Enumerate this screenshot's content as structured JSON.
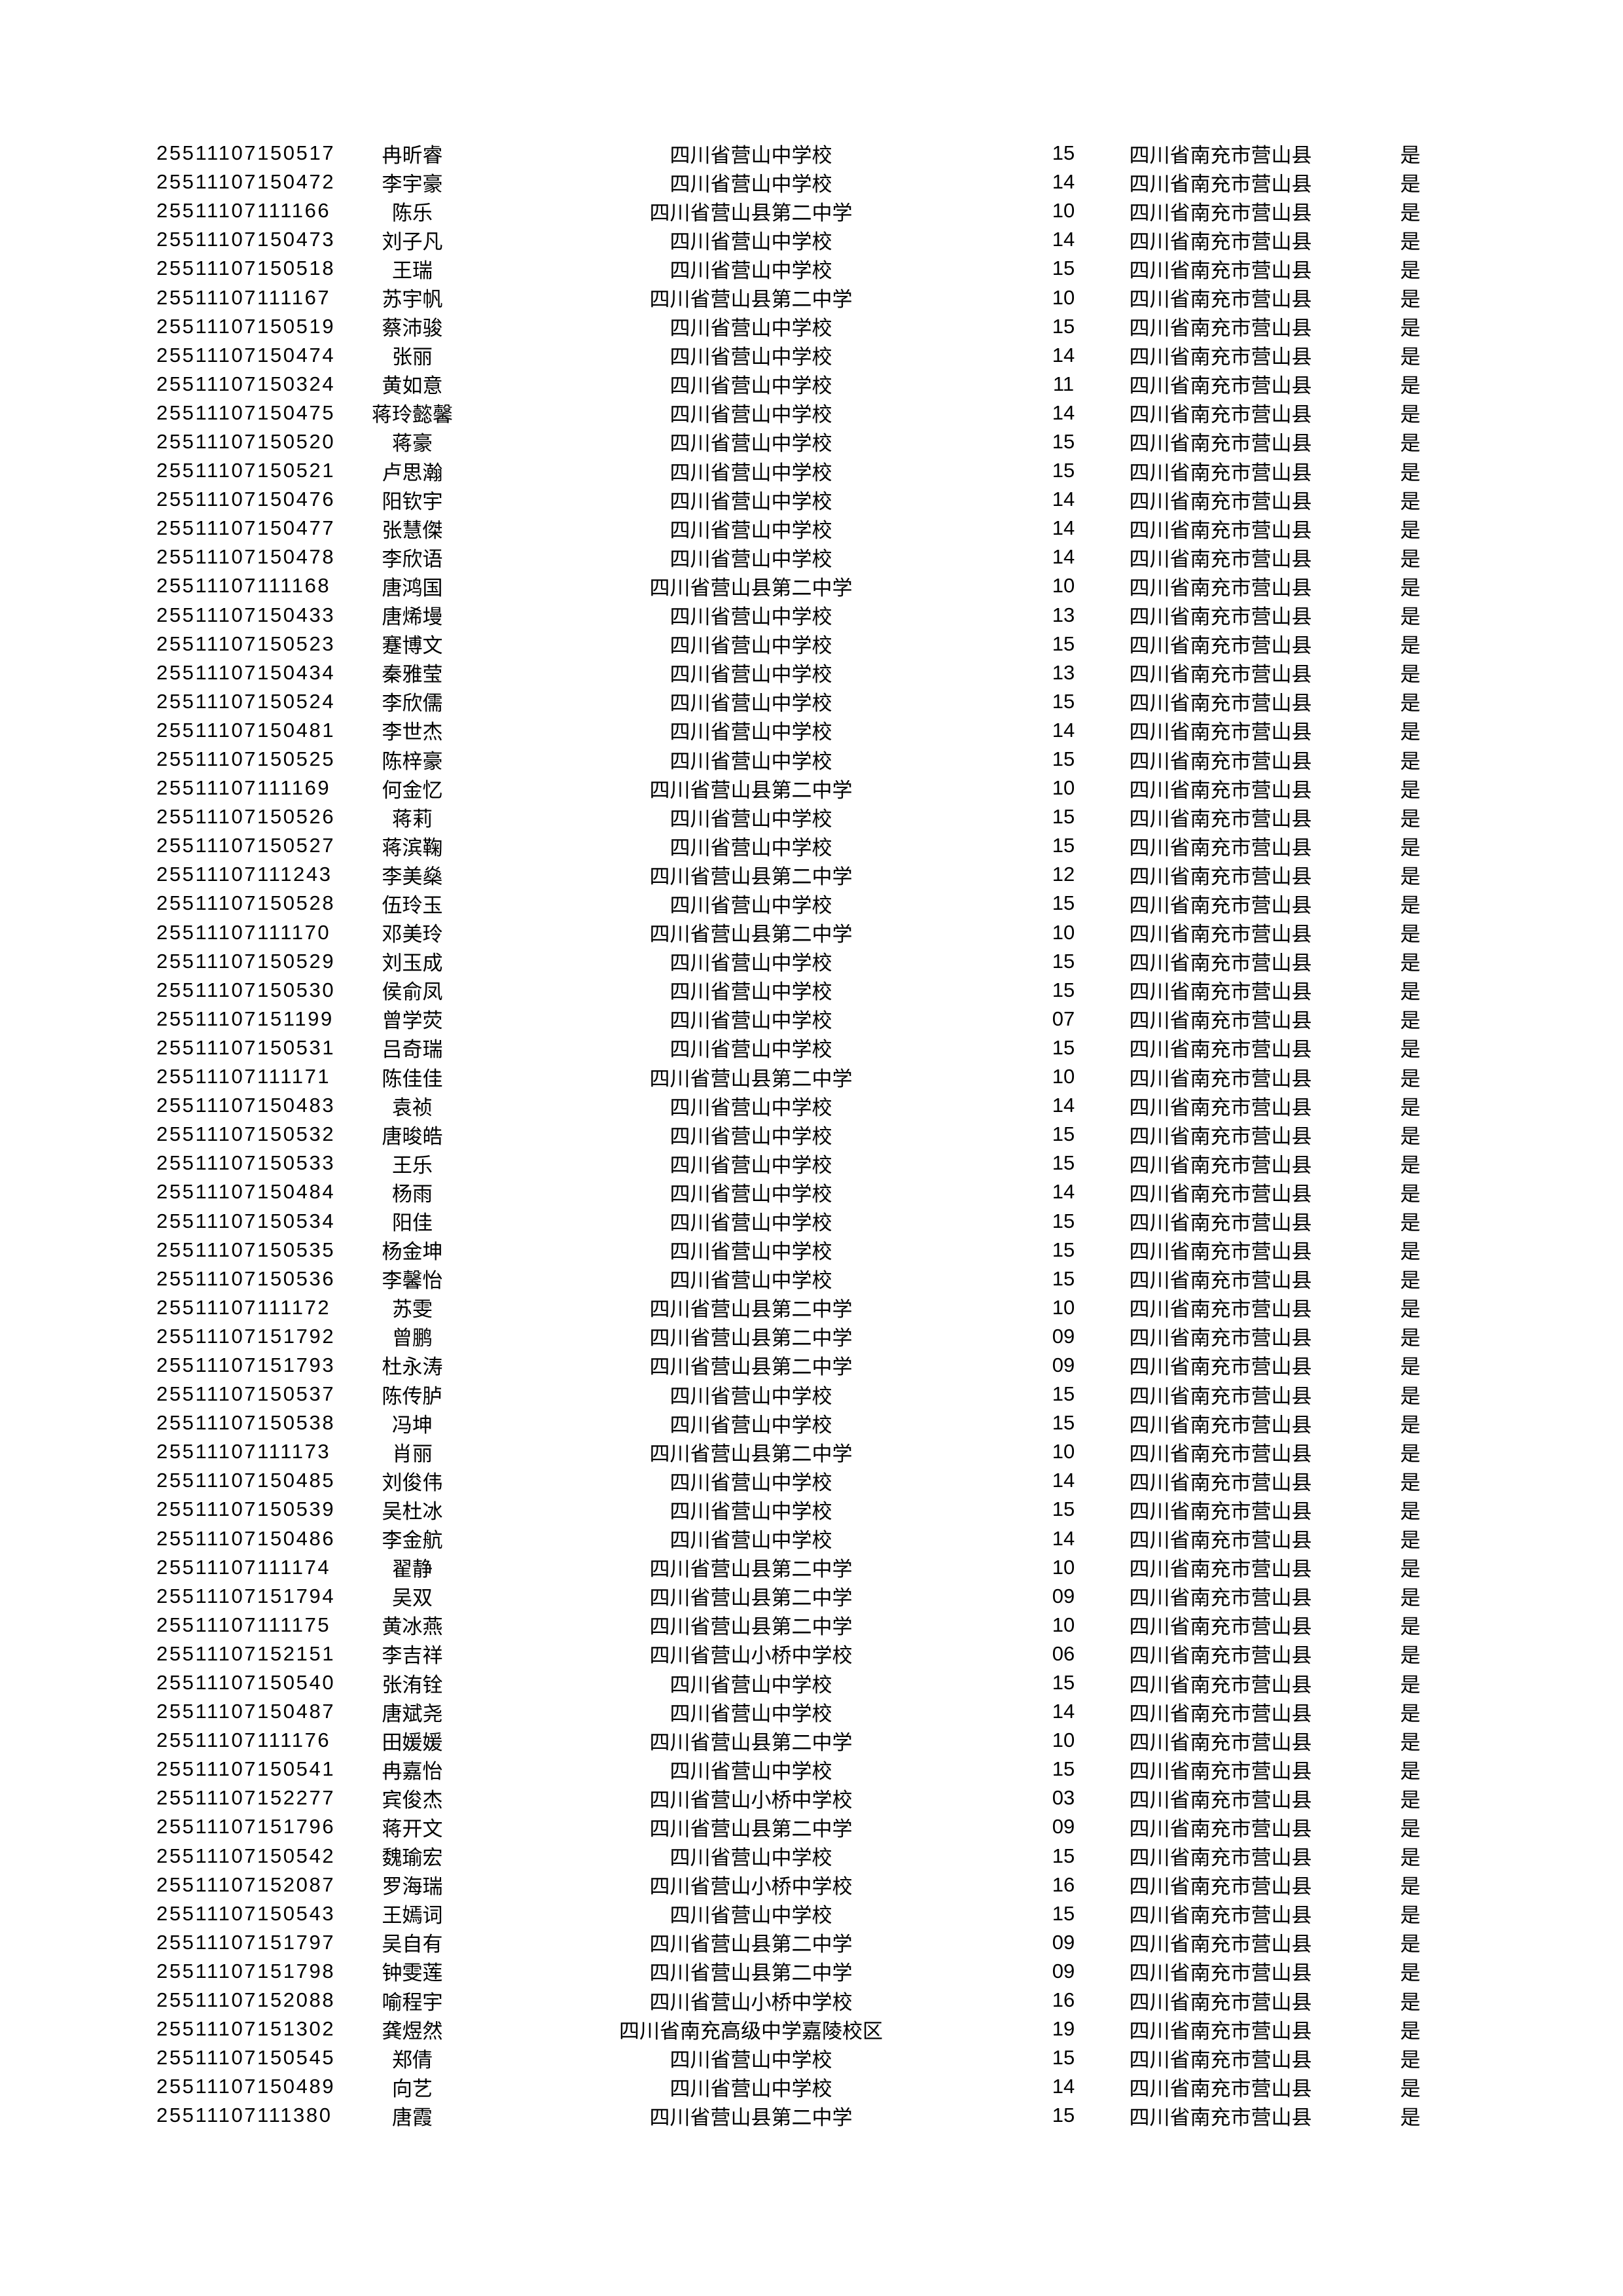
{
  "page": {
    "background": "#ffffff",
    "text_color": "#000000",
    "region_label": "四川省南充市营山县",
    "confirm_label": "是"
  },
  "table": {
    "rows": [
      {
        "id": "25511107150517",
        "name": "冉昕睿",
        "school": "四川省营山中学校",
        "score": "15",
        "region": "四川省南充市营山县",
        "flag": "是"
      },
      {
        "id": "25511107150472",
        "name": "李宇豪",
        "school": "四川省营山中学校",
        "score": "14",
        "region": "四川省南充市营山县",
        "flag": "是"
      },
      {
        "id": "25511107111166",
        "name": "陈乐",
        "school": "四川省营山县第二中学",
        "score": "10",
        "region": "四川省南充市营山县",
        "flag": "是"
      },
      {
        "id": "25511107150473",
        "name": "刘子凡",
        "school": "四川省营山中学校",
        "score": "14",
        "region": "四川省南充市营山县",
        "flag": "是"
      },
      {
        "id": "25511107150518",
        "name": "王瑞",
        "school": "四川省营山中学校",
        "score": "15",
        "region": "四川省南充市营山县",
        "flag": "是"
      },
      {
        "id": "25511107111167",
        "name": "苏宇帆",
        "school": "四川省营山县第二中学",
        "score": "10",
        "region": "四川省南充市营山县",
        "flag": "是"
      },
      {
        "id": "25511107150519",
        "name": "蔡沛骏",
        "school": "四川省营山中学校",
        "score": "15",
        "region": "四川省南充市营山县",
        "flag": "是"
      },
      {
        "id": "25511107150474",
        "name": "张丽",
        "school": "四川省营山中学校",
        "score": "14",
        "region": "四川省南充市营山县",
        "flag": "是"
      },
      {
        "id": "25511107150324",
        "name": "黄如意",
        "school": "四川省营山中学校",
        "score": "11",
        "region": "四川省南充市营山县",
        "flag": "是"
      },
      {
        "id": "25511107150475",
        "name": "蒋玲懿馨",
        "school": "四川省营山中学校",
        "score": "14",
        "region": "四川省南充市营山县",
        "flag": "是"
      },
      {
        "id": "25511107150520",
        "name": "蒋豪",
        "school": "四川省营山中学校",
        "score": "15",
        "region": "四川省南充市营山县",
        "flag": "是"
      },
      {
        "id": "25511107150521",
        "name": "卢思瀚",
        "school": "四川省营山中学校",
        "score": "15",
        "region": "四川省南充市营山县",
        "flag": "是"
      },
      {
        "id": "25511107150476",
        "name": "阳钦宇",
        "school": "四川省营山中学校",
        "score": "14",
        "region": "四川省南充市营山县",
        "flag": "是"
      },
      {
        "id": "25511107150477",
        "name": "张慧傑",
        "school": "四川省营山中学校",
        "score": "14",
        "region": "四川省南充市营山县",
        "flag": "是"
      },
      {
        "id": "25511107150478",
        "name": "李欣语",
        "school": "四川省营山中学校",
        "score": "14",
        "region": "四川省南充市营山县",
        "flag": "是"
      },
      {
        "id": "25511107111168",
        "name": "唐鸿国",
        "school": "四川省营山县第二中学",
        "score": "10",
        "region": "四川省南充市营山县",
        "flag": "是"
      },
      {
        "id": "25511107150433",
        "name": "唐烯墁",
        "school": "四川省营山中学校",
        "score": "13",
        "region": "四川省南充市营山县",
        "flag": "是"
      },
      {
        "id": "25511107150523",
        "name": "蹇博文",
        "school": "四川省营山中学校",
        "score": "15",
        "region": "四川省南充市营山县",
        "flag": "是"
      },
      {
        "id": "25511107150434",
        "name": "秦雅莹",
        "school": "四川省营山中学校",
        "score": "13",
        "region": "四川省南充市营山县",
        "flag": "是"
      },
      {
        "id": "25511107150524",
        "name": "李欣儒",
        "school": "四川省营山中学校",
        "score": "15",
        "region": "四川省南充市营山县",
        "flag": "是"
      },
      {
        "id": "25511107150481",
        "name": "李世杰",
        "school": "四川省营山中学校",
        "score": "14",
        "region": "四川省南充市营山县",
        "flag": "是"
      },
      {
        "id": "25511107150525",
        "name": "陈梓豪",
        "school": "四川省营山中学校",
        "score": "15",
        "region": "四川省南充市营山县",
        "flag": "是"
      },
      {
        "id": "25511107111169",
        "name": "何金忆",
        "school": "四川省营山县第二中学",
        "score": "10",
        "region": "四川省南充市营山县",
        "flag": "是"
      },
      {
        "id": "25511107150526",
        "name": "蒋莉",
        "school": "四川省营山中学校",
        "score": "15",
        "region": "四川省南充市营山县",
        "flag": "是"
      },
      {
        "id": "25511107150527",
        "name": "蒋滨鞠",
        "school": "四川省营山中学校",
        "score": "15",
        "region": "四川省南充市营山县",
        "flag": "是"
      },
      {
        "id": "25511107111243",
        "name": "李美燊",
        "school": "四川省营山县第二中学",
        "score": "12",
        "region": "四川省南充市营山县",
        "flag": "是"
      },
      {
        "id": "25511107150528",
        "name": "伍玲玉",
        "school": "四川省营山中学校",
        "score": "15",
        "region": "四川省南充市营山县",
        "flag": "是"
      },
      {
        "id": "25511107111170",
        "name": "邓美玲",
        "school": "四川省营山县第二中学",
        "score": "10",
        "region": "四川省南充市营山县",
        "flag": "是"
      },
      {
        "id": "25511107150529",
        "name": "刘玉成",
        "school": "四川省营山中学校",
        "score": "15",
        "region": "四川省南充市营山县",
        "flag": "是"
      },
      {
        "id": "25511107150530",
        "name": "侯俞凤",
        "school": "四川省营山中学校",
        "score": "15",
        "region": "四川省南充市营山县",
        "flag": "是"
      },
      {
        "id": "25511107151199",
        "name": "曾学荧",
        "school": "四川省营山中学校",
        "score": "07",
        "region": "四川省南充市营山县",
        "flag": "是"
      },
      {
        "id": "25511107150531",
        "name": "吕奇瑞",
        "school": "四川省营山中学校",
        "score": "15",
        "region": "四川省南充市营山县",
        "flag": "是"
      },
      {
        "id": "25511107111171",
        "name": "陈佳佳",
        "school": "四川省营山县第二中学",
        "score": "10",
        "region": "四川省南充市营山县",
        "flag": "是"
      },
      {
        "id": "25511107150483",
        "name": "袁祯",
        "school": "四川省营山中学校",
        "score": "14",
        "region": "四川省南充市营山县",
        "flag": "是"
      },
      {
        "id": "25511107150532",
        "name": "唐晙皓",
        "school": "四川省营山中学校",
        "score": "15",
        "region": "四川省南充市营山县",
        "flag": "是"
      },
      {
        "id": "25511107150533",
        "name": "王乐",
        "school": "四川省营山中学校",
        "score": "15",
        "region": "四川省南充市营山县",
        "flag": "是"
      },
      {
        "id": "25511107150484",
        "name": "杨雨",
        "school": "四川省营山中学校",
        "score": "14",
        "region": "四川省南充市营山县",
        "flag": "是"
      },
      {
        "id": "25511107150534",
        "name": "阳佳",
        "school": "四川省营山中学校",
        "score": "15",
        "region": "四川省南充市营山县",
        "flag": "是"
      },
      {
        "id": "25511107150535",
        "name": "杨金坤",
        "school": "四川省营山中学校",
        "score": "15",
        "region": "四川省南充市营山县",
        "flag": "是"
      },
      {
        "id": "25511107150536",
        "name": "李馨怡",
        "school": "四川省营山中学校",
        "score": "15",
        "region": "四川省南充市营山县",
        "flag": "是"
      },
      {
        "id": "25511107111172",
        "name": "苏雯",
        "school": "四川省营山县第二中学",
        "score": "10",
        "region": "四川省南充市营山县",
        "flag": "是"
      },
      {
        "id": "25511107151792",
        "name": "曾鹏",
        "school": "四川省营山县第二中学",
        "score": "09",
        "region": "四川省南充市营山县",
        "flag": "是"
      },
      {
        "id": "25511107151793",
        "name": "杜永涛",
        "school": "四川省营山县第二中学",
        "score": "09",
        "region": "四川省南充市营山县",
        "flag": "是"
      },
      {
        "id": "25511107150537",
        "name": "陈传胪",
        "school": "四川省营山中学校",
        "score": "15",
        "region": "四川省南充市营山县",
        "flag": "是"
      },
      {
        "id": "25511107150538",
        "name": "冯坤",
        "school": "四川省营山中学校",
        "score": "15",
        "region": "四川省南充市营山县",
        "flag": "是"
      },
      {
        "id": "25511107111173",
        "name": "肖丽",
        "school": "四川省营山县第二中学",
        "score": "10",
        "region": "四川省南充市营山县",
        "flag": "是"
      },
      {
        "id": "25511107150485",
        "name": "刘俊伟",
        "school": "四川省营山中学校",
        "score": "14",
        "region": "四川省南充市营山县",
        "flag": "是"
      },
      {
        "id": "25511107150539",
        "name": "吴杜冰",
        "school": "四川省营山中学校",
        "score": "15",
        "region": "四川省南充市营山县",
        "flag": "是"
      },
      {
        "id": "25511107150486",
        "name": "李金航",
        "school": "四川省营山中学校",
        "score": "14",
        "region": "四川省南充市营山县",
        "flag": "是"
      },
      {
        "id": "25511107111174",
        "name": "翟静",
        "school": "四川省营山县第二中学",
        "score": "10",
        "region": "四川省南充市营山县",
        "flag": "是"
      },
      {
        "id": "25511107151794",
        "name": "吴双",
        "school": "四川省营山县第二中学",
        "score": "09",
        "region": "四川省南充市营山县",
        "flag": "是"
      },
      {
        "id": "25511107111175",
        "name": "黄冰燕",
        "school": "四川省营山县第二中学",
        "score": "10",
        "region": "四川省南充市营山县",
        "flag": "是"
      },
      {
        "id": "25511107152151",
        "name": "李吉祥",
        "school": "四川省营山小桥中学校",
        "score": "06",
        "region": "四川省南充市营山县",
        "flag": "是"
      },
      {
        "id": "25511107150540",
        "name": "张洧铨",
        "school": "四川省营山中学校",
        "score": "15",
        "region": "四川省南充市营山县",
        "flag": "是"
      },
      {
        "id": "25511107150487",
        "name": "唐斌尧",
        "school": "四川省营山中学校",
        "score": "14",
        "region": "四川省南充市营山县",
        "flag": "是"
      },
      {
        "id": "25511107111176",
        "name": "田媛媛",
        "school": "四川省营山县第二中学",
        "score": "10",
        "region": "四川省南充市营山县",
        "flag": "是"
      },
      {
        "id": "25511107150541",
        "name": "冉嘉怡",
        "school": "四川省营山中学校",
        "score": "15",
        "region": "四川省南充市营山县",
        "flag": "是"
      },
      {
        "id": "25511107152277",
        "name": "宾俊杰",
        "school": "四川省营山小桥中学校",
        "score": "03",
        "region": "四川省南充市营山县",
        "flag": "是"
      },
      {
        "id": "25511107151796",
        "name": "蒋开文",
        "school": "四川省营山县第二中学",
        "score": "09",
        "region": "四川省南充市营山县",
        "flag": "是"
      },
      {
        "id": "25511107150542",
        "name": "魏瑜宏",
        "school": "四川省营山中学校",
        "score": "15",
        "region": "四川省南充市营山县",
        "flag": "是"
      },
      {
        "id": "25511107152087",
        "name": "罗海瑞",
        "school": "四川省营山小桥中学校",
        "score": "16",
        "region": "四川省南充市营山县",
        "flag": "是"
      },
      {
        "id": "25511107150543",
        "name": "王嫣词",
        "school": "四川省营山中学校",
        "score": "15",
        "region": "四川省南充市营山县",
        "flag": "是"
      },
      {
        "id": "25511107151797",
        "name": "吴自有",
        "school": "四川省营山县第二中学",
        "score": "09",
        "region": "四川省南充市营山县",
        "flag": "是"
      },
      {
        "id": "25511107151798",
        "name": "钟雯莲",
        "school": "四川省营山县第二中学",
        "score": "09",
        "region": "四川省南充市营山县",
        "flag": "是"
      },
      {
        "id": "25511107152088",
        "name": "喻程宇",
        "school": "四川省营山小桥中学校",
        "score": "16",
        "region": "四川省南充市营山县",
        "flag": "是"
      },
      {
        "id": "25511107151302",
        "name": "龚煜然",
        "school": "四川省南充高级中学嘉陵校区",
        "score": "19",
        "region": "四川省南充市营山县",
        "flag": "是"
      },
      {
        "id": "25511107150545",
        "name": "郑倩",
        "school": "四川省营山中学校",
        "score": "15",
        "region": "四川省南充市营山县",
        "flag": "是"
      },
      {
        "id": "25511107150489",
        "name": "向艺",
        "school": "四川省营山中学校",
        "score": "14",
        "region": "四川省南充市营山县",
        "flag": "是"
      },
      {
        "id": "25511107111380",
        "name": "唐霞",
        "school": "四川省营山县第二中学",
        "score": "15",
        "region": "四川省南充市营山县",
        "flag": "是"
      }
    ]
  }
}
